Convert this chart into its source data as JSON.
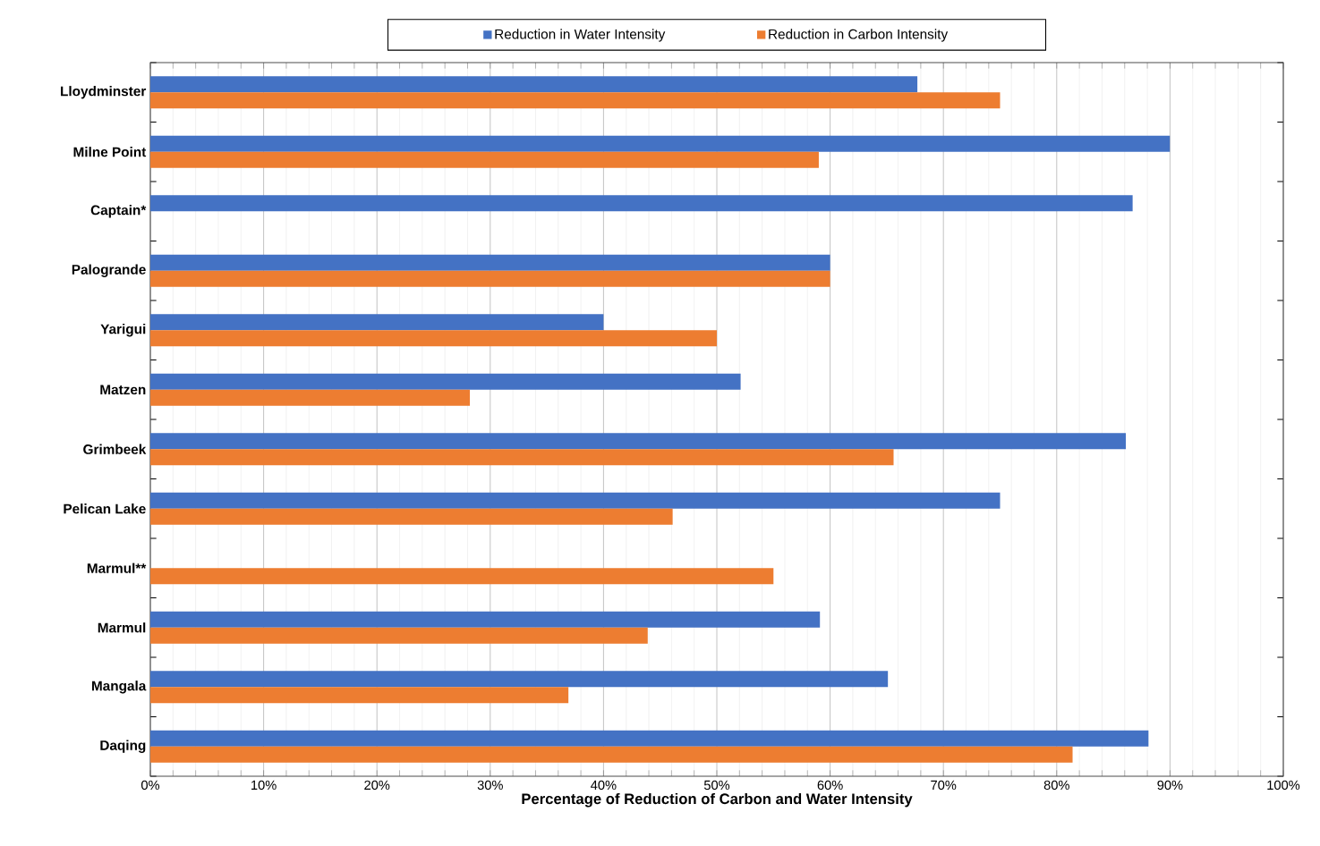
{
  "chart_data": {
    "type": "bar",
    "orientation": "horizontal",
    "xlabel": "Percentage of Reduction of Carbon and Water Intensity",
    "categories": [
      "Lloydminster",
      "Milne Point",
      "Captain*",
      "Palogrande",
      "Yarigui",
      "Matzen",
      "Grimbeek",
      "Pelican Lake",
      "Marmul**",
      "Marmul",
      "Mangala",
      "Daqing"
    ],
    "series": [
      {
        "name": "Reduction in Water Intensity",
        "color": "#4472c4",
        "values": [
          67.7,
          90.0,
          86.7,
          60.0,
          40.0,
          52.1,
          86.1,
          75.0,
          null,
          59.1,
          65.1,
          88.1
        ]
      },
      {
        "name": "Reduction in Carbon Intensity",
        "color": "#ed7d31",
        "values": [
          75.0,
          59.0,
          null,
          60.0,
          50.0,
          28.2,
          65.6,
          46.1,
          55.0,
          43.9,
          36.9,
          81.4
        ]
      }
    ],
    "xlim": [
      0,
      100
    ],
    "xticks": [
      {
        "value": 0,
        "label": "0%"
      },
      {
        "value": 10,
        "label": "10%"
      },
      {
        "value": 20,
        "label": "20%"
      },
      {
        "value": 30,
        "label": "30%"
      },
      {
        "value": 40,
        "label": "40%"
      },
      {
        "value": 50,
        "label": "50%"
      },
      {
        "value": 60,
        "label": "60%"
      },
      {
        "value": 70,
        "label": "70%"
      },
      {
        "value": 80,
        "label": "80%"
      },
      {
        "value": 90,
        "label": "90%"
      },
      {
        "value": 100,
        "label": "100%"
      }
    ],
    "grid": "x",
    "legend": "top"
  }
}
